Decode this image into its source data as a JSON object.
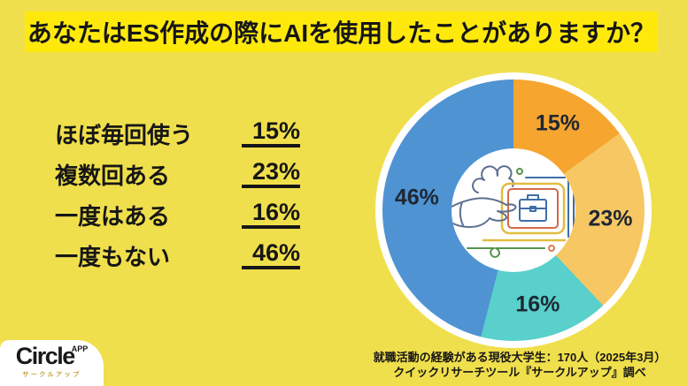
{
  "page": {
    "background": "#F0DF4C"
  },
  "title_banner": {
    "text": "あなたはES作成の際にAIを使用したことがありますか？",
    "background": "#FFE90D",
    "text_color": "#161616"
  },
  "answers": [
    {
      "label": "ほぼ毎回使う",
      "value": "15%"
    },
    {
      "label": "複数回ある",
      "value": "23%"
    },
    {
      "label": "一度はある",
      "value": "16%"
    },
    {
      "label": "一度もない",
      "value": "46%"
    }
  ],
  "chart_data": {
    "type": "pie",
    "subtype": "donut",
    "title": "あなたはES作成の際にAIを使用したことがありますか？",
    "categories": [
      "ほぼ毎回使う",
      "複数回ある",
      "一度はある",
      "一度もない"
    ],
    "values": [
      15,
      23,
      16,
      46
    ],
    "labels": [
      "15%",
      "23%",
      "16%",
      "46%"
    ],
    "unit": "%",
    "colors": [
      "#F6A52F",
      "#F7C763",
      "#59D0CB",
      "#4F93D3"
    ],
    "start_angle_deg": 0,
    "direction": "clockwise",
    "label_color": "#1F2733",
    "ring_color": "#FFFFFF",
    "center_illustration": "hand-reaching-to-laptop-with-briefcase"
  },
  "logo": {
    "name": "Circle",
    "superscript": "APP",
    "subtitle": "サークルアップ",
    "subtitle_color": "#C2A23C"
  },
  "source": {
    "line1": "就職活動の経験がある現役大学生：170人（2025年3月）",
    "line2": "クイックリサーチツール『サークルアップ』調べ"
  }
}
